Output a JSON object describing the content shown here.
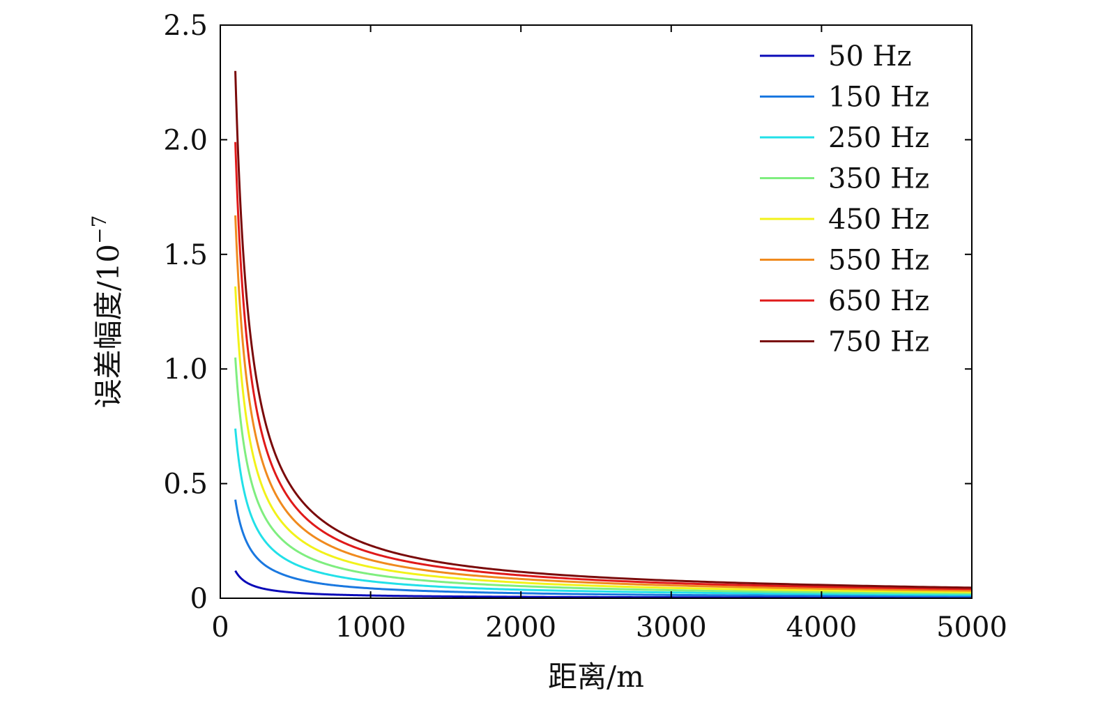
{
  "chart_data": {
    "type": "line",
    "xlabel": "距离/m",
    "ylabel_text": "误差幅度/10",
    "ylabel_exponent": "−7",
    "xlim": [
      0,
      5000
    ],
    "ylim": [
      0,
      2.5
    ],
    "xticks": [
      0,
      1000,
      2000,
      3000,
      4000,
      5000
    ],
    "xtick_labels": [
      "0",
      "1000",
      "2000",
      "3000",
      "4000",
      "5000"
    ],
    "yticks": [
      0,
      0.5,
      1.0,
      1.5,
      2.0,
      2.5
    ],
    "ytick_labels": [
      "0",
      "0.5",
      "1.0",
      "1.5",
      "2.0",
      "2.5"
    ],
    "grid": false,
    "legend_position": "top-right",
    "x": [
      100,
      150,
      200,
      300,
      400,
      500,
      700,
      1000,
      1500,
      2000,
      3000,
      4000,
      5000
    ],
    "series": [
      {
        "name": "50 Hz",
        "color": "#0a0ab8",
        "values": [
          0.12,
          0.08,
          0.06,
          0.04,
          0.03,
          0.024,
          0.017,
          0.012,
          0.008,
          0.006,
          0.004,
          0.003,
          0.0024
        ]
      },
      {
        "name": "150 Hz",
        "color": "#1a78e0",
        "values": [
          0.43,
          0.287,
          0.215,
          0.143,
          0.108,
          0.086,
          0.061,
          0.043,
          0.029,
          0.022,
          0.014,
          0.011,
          0.0086
        ]
      },
      {
        "name": "250 Hz",
        "color": "#22e0e8",
        "values": [
          0.74,
          0.493,
          0.37,
          0.247,
          0.185,
          0.148,
          0.106,
          0.074,
          0.049,
          0.037,
          0.025,
          0.019,
          0.0148
        ]
      },
      {
        "name": "350 Hz",
        "color": "#7fee7f",
        "values": [
          1.05,
          0.7,
          0.525,
          0.35,
          0.263,
          0.21,
          0.15,
          0.105,
          0.07,
          0.053,
          0.035,
          0.026,
          0.021
        ]
      },
      {
        "name": "450 Hz",
        "color": "#f2f21a",
        "values": [
          1.36,
          0.907,
          0.68,
          0.453,
          0.34,
          0.272,
          0.194,
          0.136,
          0.091,
          0.068,
          0.045,
          0.034,
          0.027
        ]
      },
      {
        "name": "550 Hz",
        "color": "#f08a1e",
        "values": [
          1.67,
          1.113,
          0.835,
          0.557,
          0.418,
          0.334,
          0.239,
          0.167,
          0.111,
          0.084,
          0.056,
          0.042,
          0.033
        ]
      },
      {
        "name": "650 Hz",
        "color": "#e01a1a",
        "values": [
          1.99,
          1.327,
          0.995,
          0.663,
          0.498,
          0.398,
          0.284,
          0.199,
          0.133,
          0.1,
          0.066,
          0.05,
          0.04
        ]
      },
      {
        "name": "750 Hz",
        "color": "#7a0a0a",
        "values": [
          2.3,
          1.533,
          1.15,
          0.767,
          0.575,
          0.46,
          0.329,
          0.23,
          0.153,
          0.115,
          0.077,
          0.058,
          0.046
        ]
      }
    ]
  }
}
